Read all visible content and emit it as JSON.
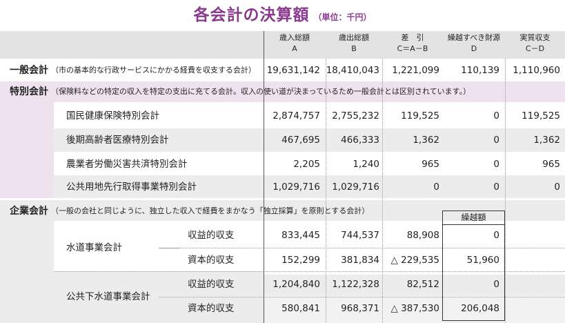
{
  "title": "各会計の決算額",
  "unit": "（単位：千円）",
  "headers": [
    {
      "line1": "歳入総額",
      "line2": "A"
    },
    {
      "line1": "歳出総額",
      "line2": "B"
    },
    {
      "line1": "差　引",
      "line2": "C＝A－B"
    },
    {
      "line1": "繰越すべき財源",
      "line2": "D"
    },
    {
      "line1": "実質収支",
      "line2": "C－D"
    }
  ],
  "general": {
    "label": "一般会計",
    "desc": "（市の基本的な行政サービスにかかる経費を収支する会計）",
    "values": [
      "19,631,142",
      "18,410,043",
      "1,221,099",
      "110,139",
      "1,110,960"
    ]
  },
  "special": {
    "label": "特別会計",
    "desc": "（保険料などの特定の収入を特定の支出に充てる会計。収入の使い道が決まっているため一般会計とは区別されています。）",
    "rows": [
      {
        "name": "国民健康保険特別会計",
        "values": [
          "2,874,757",
          "2,755,232",
          "119,525",
          "0",
          "119,525"
        ]
      },
      {
        "name": "後期高齢者医療特別会計",
        "values": [
          "467,695",
          "466,333",
          "1,362",
          "0",
          "1,362"
        ]
      },
      {
        "name": "農業者労働災害共済特別会計",
        "values": [
          "2,205",
          "1,240",
          "965",
          "0",
          "965"
        ]
      },
      {
        "name": "公共用地先行取得事業特別会計",
        "values": [
          "1,029,716",
          "1,029,716",
          "0",
          "0",
          "0"
        ]
      }
    ]
  },
  "enterprise": {
    "label": "企業会計",
    "desc": "（一般の会社と同じように、独立した収入で経費をまかなう「独立採算」を原則とする会計）",
    "carryover_label": "繰越額",
    "groups": [
      {
        "name": "水道事業会計",
        "rows": [
          {
            "type": "収益的収支",
            "values": [
              "833,445",
              "744,537",
              "88,908",
              "0"
            ]
          },
          {
            "type": "資本的収支",
            "values": [
              "152,299",
              "381,834",
              "△ 229,535",
              "51,960"
            ]
          }
        ]
      },
      {
        "name": "公共下水道事業会計",
        "rows": [
          {
            "type": "収益的収支",
            "values": [
              "1,204,840",
              "1,122,328",
              "82,512",
              "0"
            ]
          },
          {
            "type": "資本的収支",
            "values": [
              "580,841",
              "968,371",
              "△ 387,530",
              "206,048"
            ]
          }
        ]
      }
    ]
  }
}
